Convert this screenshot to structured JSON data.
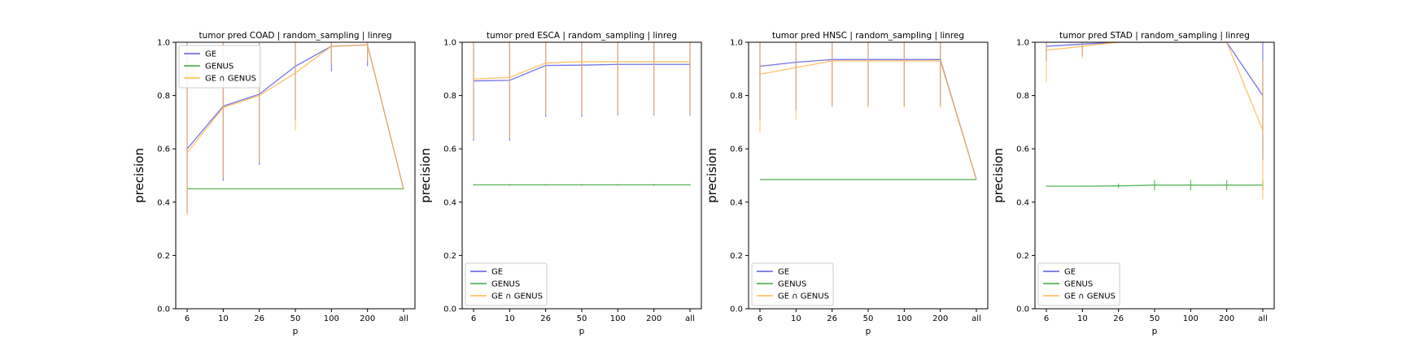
{
  "colors": {
    "GE": "#5a5ae6",
    "GENUS": "#3aa83a",
    "GE ∩ GENUS": "#ffb84d",
    "frame": "#000000"
  },
  "chart_data": [
    {
      "type": "line",
      "title": "tumor pred COAD | random_sampling | linreg",
      "xlabel": "p",
      "ylabel": "precision",
      "categories": [
        "6",
        "10",
        "26",
        "50",
        "100",
        "200",
        "all"
      ],
      "ylim": [
        0,
        1
      ],
      "yticks": [
        "0.0",
        "0.2",
        "0.4",
        "0.6",
        "0.8",
        "1.0"
      ],
      "legend_position": "upper-left",
      "series": [
        {
          "name": "GE",
          "values": [
            0.6,
            0.76,
            0.805,
            0.91,
            0.985,
            0.99,
            0.45
          ],
          "err_low": [
            0.36,
            0.48,
            0.54,
            0.71,
            0.89,
            0.91,
            0.45
          ],
          "err_high": [
            1.0,
            1.0,
            1.0,
            1.0,
            1.0,
            1.0,
            0.45
          ]
        },
        {
          "name": "GENUS",
          "values": [
            0.45,
            0.45,
            0.45,
            0.45,
            0.45,
            0.45,
            0.45
          ],
          "err_low": [
            0.45,
            0.45,
            0.45,
            0.45,
            0.45,
            0.45,
            0.45
          ],
          "err_high": [
            0.45,
            0.45,
            0.45,
            0.45,
            0.45,
            0.45,
            0.45
          ]
        },
        {
          "name": "GE ∩ GENUS",
          "values": [
            0.585,
            0.755,
            0.8,
            0.885,
            0.985,
            0.99,
            0.45
          ],
          "err_low": [
            0.35,
            0.49,
            0.55,
            0.67,
            0.92,
            0.93,
            0.45
          ],
          "err_high": [
            1.0,
            1.0,
            1.0,
            1.0,
            1.0,
            1.0,
            0.45
          ]
        }
      ]
    },
    {
      "type": "line",
      "title": "tumor pred ESCA | random_sampling | linreg",
      "xlabel": "p",
      "ylabel": "precision",
      "categories": [
        "6",
        "10",
        "26",
        "50",
        "100",
        "200",
        "all"
      ],
      "ylim": [
        0,
        1
      ],
      "yticks": [
        "0.0",
        "0.2",
        "0.4",
        "0.6",
        "0.8",
        "1.0"
      ],
      "legend_position": "lower-left",
      "series": [
        {
          "name": "GE",
          "values": [
            0.855,
            0.857,
            0.913,
            0.914,
            0.917,
            0.917,
            0.917
          ],
          "err_low": [
            0.63,
            0.63,
            0.72,
            0.72,
            0.725,
            0.725,
            0.725
          ],
          "err_high": [
            1.0,
            1.0,
            1.0,
            1.0,
            1.0,
            1.0,
            1.0
          ]
        },
        {
          "name": "GENUS",
          "values": [
            0.465,
            0.465,
            0.465,
            0.465,
            0.465,
            0.465,
            0.465
          ],
          "err_low": [
            0.462,
            0.462,
            0.462,
            0.462,
            0.462,
            0.462,
            0.462
          ],
          "err_high": [
            0.468,
            0.468,
            0.468,
            0.468,
            0.468,
            0.468,
            0.468
          ]
        },
        {
          "name": "GE ∩ GENUS",
          "values": [
            0.862,
            0.868,
            0.922,
            0.927,
            0.927,
            0.927,
            0.927
          ],
          "err_low": [
            0.64,
            0.64,
            0.73,
            0.73,
            0.73,
            0.73,
            0.73
          ],
          "err_high": [
            1.0,
            1.0,
            1.0,
            1.0,
            1.0,
            1.0,
            1.0
          ]
        }
      ]
    },
    {
      "type": "line",
      "title": "tumor pred HNSC | random_sampling | linreg",
      "xlabel": "p",
      "ylabel": "precision",
      "categories": [
        "6",
        "10",
        "26",
        "50",
        "100",
        "200",
        "all"
      ],
      "ylim": [
        0,
        1
      ],
      "yticks": [
        "0.0",
        "0.2",
        "0.4",
        "0.6",
        "0.8",
        "1.0"
      ],
      "legend_position": "lower-left",
      "series": [
        {
          "name": "GE",
          "values": [
            0.91,
            0.925,
            0.935,
            0.935,
            0.935,
            0.935,
            0.485
          ],
          "err_low": [
            0.71,
            0.745,
            0.76,
            0.76,
            0.76,
            0.76,
            0.485
          ],
          "err_high": [
            1.0,
            1.0,
            1.0,
            1.0,
            1.0,
            1.0,
            0.485
          ]
        },
        {
          "name": "GENUS",
          "values": [
            0.485,
            0.485,
            0.485,
            0.485,
            0.485,
            0.485,
            0.485
          ],
          "err_low": [
            0.485,
            0.485,
            0.485,
            0.485,
            0.485,
            0.485,
            0.485
          ],
          "err_high": [
            0.485,
            0.485,
            0.485,
            0.485,
            0.485,
            0.485,
            0.485
          ]
        },
        {
          "name": "GE ∩ GENUS",
          "values": [
            0.88,
            0.905,
            0.93,
            0.93,
            0.93,
            0.93,
            0.485
          ],
          "err_low": [
            0.66,
            0.71,
            0.755,
            0.755,
            0.755,
            0.755,
            0.485
          ],
          "err_high": [
            1.0,
            1.0,
            1.0,
            1.0,
            1.0,
            1.0,
            0.485
          ]
        }
      ]
    },
    {
      "type": "line",
      "title": "tumor pred STAD | random_sampling | linreg",
      "xlabel": "p",
      "ylabel": "precision",
      "categories": [
        "6",
        "10",
        "26",
        "50",
        "100",
        "200",
        "all"
      ],
      "ylim": [
        0,
        1
      ],
      "yticks": [
        "0.0",
        "0.2",
        "0.4",
        "0.6",
        "0.8",
        "1.0"
      ],
      "legend_position": "lower-left",
      "series": [
        {
          "name": "GE",
          "values": [
            0.985,
            0.993,
            1.0,
            1.0,
            1.0,
            1.0,
            0.8
          ],
          "err_low": [
            0.93,
            0.95,
            1.0,
            1.0,
            1.0,
            1.0,
            0.56
          ],
          "err_high": [
            1.0,
            1.0,
            1.0,
            1.0,
            1.0,
            1.0,
            1.0
          ]
        },
        {
          "name": "GENUS",
          "values": [
            0.46,
            0.46,
            0.461,
            0.464,
            0.464,
            0.464,
            0.464
          ],
          "err_low": [
            0.458,
            0.458,
            0.453,
            0.444,
            0.444,
            0.445,
            0.445
          ],
          "err_high": [
            0.462,
            0.462,
            0.47,
            0.484,
            0.484,
            0.483,
            0.483
          ]
        },
        {
          "name": "GE ∩ GENUS",
          "values": [
            0.97,
            0.985,
            1.0,
            1.0,
            1.0,
            1.0,
            0.67
          ],
          "err_low": [
            0.85,
            0.94,
            1.0,
            1.0,
            1.0,
            1.0,
            0.41
          ],
          "err_high": [
            1.0,
            1.0,
            1.0,
            1.0,
            1.0,
            1.0,
            0.93
          ]
        }
      ]
    }
  ]
}
